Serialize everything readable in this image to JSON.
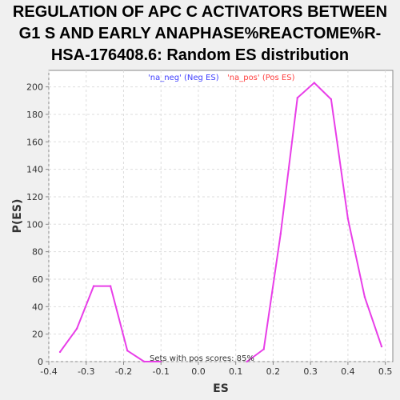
{
  "chart_data": {
    "type": "line",
    "title_lines": [
      "REGULATION OF APC C ACTIVATORS BETWEEN",
      "G1 S AND EARLY ANAPHASE%REACTOME%R-",
      "HSA-176408.6: Random ES distribution"
    ],
    "xlabel": "ES",
    "ylabel": "P(ES)",
    "xlim": [
      -0.4,
      0.52
    ],
    "ylim": [
      0,
      212
    ],
    "xticks": [
      "-0.4",
      "-0.3",
      "-0.2",
      "-0.1",
      "0.0",
      "0.1",
      "0.2",
      "0.3",
      "0.4",
      "0.5"
    ],
    "xtick_values": [
      -0.4,
      -0.3,
      -0.2,
      -0.1,
      0.0,
      0.1,
      0.2,
      0.3,
      0.4,
      0.5
    ],
    "yticks": [
      "0",
      "20",
      "40",
      "60",
      "80",
      "100",
      "120",
      "140",
      "160",
      "180",
      "200"
    ],
    "ytick_values": [
      0,
      20,
      40,
      60,
      80,
      100,
      120,
      140,
      160,
      180,
      200
    ],
    "grid": true,
    "legend": [
      {
        "label": "'na_neg' (Neg ES)",
        "color": "#4040ff"
      },
      {
        "label": "'na_pos' (Pos ES)",
        "color": "#ff4040"
      }
    ],
    "annotation": "Sets with pos scores: 85%",
    "series": [
      {
        "name": "'na_neg' (Neg ES)",
        "color": "#e83ee8",
        "x": [
          -0.37,
          -0.325,
          -0.28,
          -0.235,
          -0.19,
          -0.145,
          -0.1
        ],
        "y": [
          7,
          24,
          55,
          55,
          8,
          0,
          0
        ]
      },
      {
        "name": "'na_pos' (Pos ES)",
        "color": "#e83ee8",
        "x": [
          0.13,
          0.175,
          0.22,
          0.265,
          0.31,
          0.355,
          0.4,
          0.445,
          0.49
        ],
        "y": [
          0,
          9,
          93,
          192,
          203,
          191,
          104,
          47,
          11
        ]
      }
    ]
  }
}
